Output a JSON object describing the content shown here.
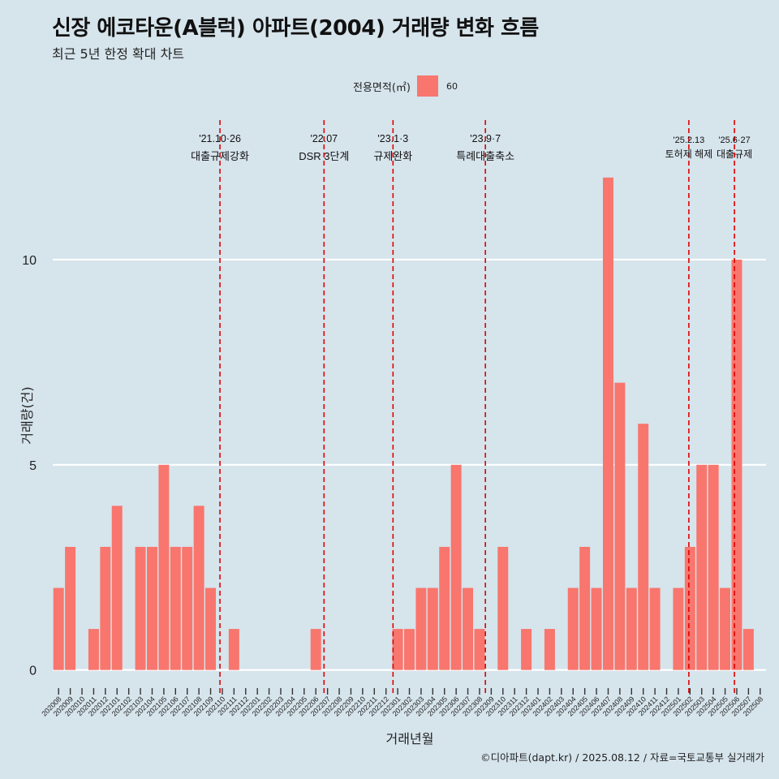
{
  "chart_data": {
    "type": "bar",
    "title": "신장 에코타운(A블럭) 아파트(2004) 거래량 변화 흐름",
    "subtitle": "최근 5년 한정 확대 차트",
    "xlabel": "거래년월",
    "ylabel": "거래량(건)",
    "legend": {
      "title": "전용면적(㎡)",
      "entries": [
        "60"
      ],
      "color": "#f8766d",
      "placement": "top"
    },
    "caption": "©디아파트(dapt.kr) / 2025.08.12 / 자료=국토교통부 실거래가",
    "ylim": [
      -0.6,
      13.4
    ],
    "yticks": [
      0,
      5,
      10
    ],
    "bar_color": "#f8766d",
    "event_color": "#e00000",
    "categories": [
      "202008",
      "202009",
      "202010",
      "202011",
      "202012",
      "202101",
      "202102",
      "202103",
      "202104",
      "202105",
      "202106",
      "202107",
      "202108",
      "202109",
      "202110",
      "202111",
      "202112",
      "202201",
      "202202",
      "202203",
      "202204",
      "202205",
      "202206",
      "202207",
      "202208",
      "202209",
      "202210",
      "202211",
      "202212",
      "202301",
      "202302",
      "202303",
      "202304",
      "202305",
      "202306",
      "202307",
      "202308",
      "202309",
      "202310",
      "202311",
      "202312",
      "202401",
      "202402",
      "202403",
      "202404",
      "202405",
      "202406",
      "202407",
      "202408",
      "202409",
      "202410",
      "202411",
      "202412",
      "202501",
      "202502",
      "202503",
      "202504",
      "202505",
      "202506",
      "202507",
      "202508"
    ],
    "values": [
      2,
      3,
      0,
      1,
      3,
      4,
      0,
      3,
      3,
      5,
      3,
      3,
      4,
      2,
      0,
      1,
      0,
      0,
      0,
      0,
      0,
      0,
      1,
      0,
      0,
      0,
      0,
      0,
      0,
      1,
      1,
      2,
      2,
      3,
      5,
      2,
      1,
      0,
      3,
      0,
      1,
      0,
      1,
      0,
      2,
      3,
      2,
      12,
      7,
      2,
      6,
      2,
      0,
      2,
      3,
      5,
      5,
      2,
      10,
      1,
      0
    ],
    "events": [
      {
        "x": 14.3,
        "date": "'21.10·26",
        "label": "대출규제강화"
      },
      {
        "x": 23.2,
        "date": "'22.07",
        "label": "DSR 3단계"
      },
      {
        "x": 29.1,
        "date": "'23.1·3",
        "label": "규제완화"
      },
      {
        "x": 37.0,
        "date": "'23.9·7",
        "label": "특례대출축소"
      },
      {
        "x": 54.4,
        "date": "'25.2.13",
        "label": "토허제 해제"
      },
      {
        "x": 58.3,
        "date": "'25.6·27",
        "label": "대출규제"
      }
    ]
  }
}
